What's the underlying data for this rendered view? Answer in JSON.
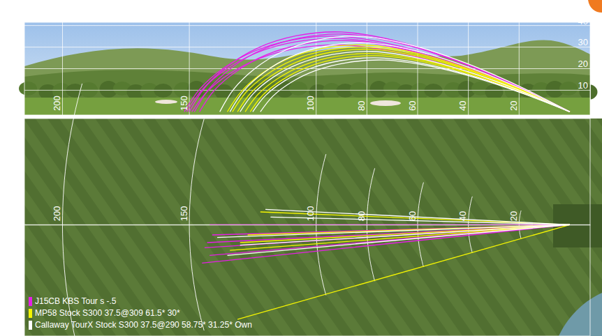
{
  "chart_data": [
    {
      "type": "trajectory",
      "xlim": [
        215,
        -8
      ],
      "ylim": [
        -1.5,
        41.5
      ],
      "xticks": [
        200,
        150,
        100,
        80,
        60,
        40,
        20
      ],
      "yticks": [
        10,
        20,
        30,
        40
      ],
      "grid": true,
      "series": [
        {
          "color": "#e61ee6",
          "shots": [
            {
              "x": [
                0,
                22.5,
                45,
                67.5,
                90,
                108,
                123,
                135,
                144,
                150
              ],
              "y": [
                0,
                13,
                24,
                32.6,
                37,
                35.2,
                29.6,
                21.1,
                11.1,
                0
              ]
            },
            {
              "x": [
                0,
                22.2,
                44.4,
                66.6,
                88.8,
                106.6,
                121.4,
                133.2,
                142.1,
                148
              ],
              "y": [
                0,
                12.6,
                23.4,
                31.7,
                36,
                34.2,
                28.8,
                20.5,
                10.8,
                0
              ]
            },
            {
              "x": [
                0,
                22.8,
                45.6,
                68.4,
                91.2,
                109.4,
                124.6,
                136.8,
                145.9,
                152
              ],
              "y": [
                0,
                12.3,
                22.8,
                30.8,
                35,
                33.3,
                28,
                20,
                10.5,
                0
              ]
            },
            {
              "x": [
                0,
                21.9,
                43.8,
                65.7,
                87.6,
                105.1,
                119.7,
                131.4,
                140.2,
                146
              ],
              "y": [
                0,
                11.6,
                21.5,
                29,
                33,
                31.4,
                26.4,
                18.8,
                9.9,
                0
              ]
            },
            {
              "x": [
                0,
                22.4,
                44.7,
                67,
                89.4,
                107.3,
                122.2,
                134.1,
                143,
                149
              ],
              "y": [
                0,
                10.9,
                20.2,
                27.3,
                31,
                29.5,
                24.8,
                17.7,
                9.3,
                0
              ]
            },
            {
              "x": [
                0,
                22.7,
                45.3,
                68,
                90.6,
                108.7,
                123.8,
                135.9,
                145,
                151
              ],
              "y": [
                0,
                11.9,
                22.1,
                29.9,
                34,
                32.3,
                27.2,
                19.4,
                10.2,
                0
              ]
            }
          ]
        },
        {
          "color": "#f5f500",
          "shots": [
            {
              "x": [
                0,
                20.3,
                40.5,
                60.8,
                81,
                97.2,
                110.7,
                121.5,
                129.6,
                135
              ],
              "y": [
                0,
                10.9,
                20.2,
                27.3,
                31,
                29.5,
                24.8,
                17.7,
                9.3,
                0
              ]
            },
            {
              "x": [
                0,
                19.7,
                39.3,
                59,
                78.6,
                94.3,
                107.4,
                117.9,
                125.8,
                131
              ],
              "y": [
                0,
                10.2,
                18.9,
                25.5,
                29,
                27.6,
                23.2,
                16.5,
                8.7,
                0
              ]
            },
            {
              "x": [
                0,
                19.2,
                38.4,
                57.6,
                76.8,
                92.2,
                105,
                115.2,
                122.9,
                128
              ],
              "y": [
                0,
                9.5,
                17.6,
                23.8,
                27,
                25.7,
                21.6,
                15.4,
                8.1,
                0
              ]
            },
            {
              "x": [
                0,
                20,
                39.9,
                59.9,
                79.8,
                95.8,
                109.1,
                119.7,
                127.7,
                133
              ],
              "y": [
                0,
                10.5,
                19.5,
                26.4,
                30,
                28.5,
                24,
                17.1,
                9,
                0
              ]
            },
            {
              "x": [
                0,
                18.9,
                37.8,
                56.7,
                75.6,
                90.7,
                103.3,
                113.4,
                121,
                126
              ],
              "y": [
                0,
                9.1,
                16.9,
                22.9,
                26,
                24.7,
                20.8,
                14.8,
                7.8,
                0
              ]
            }
          ]
        },
        {
          "color": "#ffffff",
          "shots": [
            {
              "x": [
                0,
                20.7,
                41.4,
                62.1,
                82.8,
                99.4,
                113.2,
                124.2,
                132.5,
                138
              ],
              "y": [
                0,
                12.3,
                22.8,
                30.8,
                35,
                33.3,
                28,
                20,
                10.5,
                0
              ]
            },
            {
              "x": [
                0,
                19.5,
                39,
                58.5,
                78,
                93.6,
                106.6,
                117,
                124.8,
                130
              ],
              "y": [
                0,
                9.8,
                18.2,
                24.6,
                28,
                26.6,
                22.4,
                16,
                8.4,
                0
              ]
            },
            {
              "x": [
                0,
                18.8,
                37.5,
                56.3,
                75,
                90,
                102.5,
                112.5,
                120,
                125
              ],
              "y": [
                0,
                8.8,
                16.3,
                22,
                25,
                23.8,
                20,
                14.3,
                7.5,
                0
              ]
            },
            {
              "x": [
                0,
                20.1,
                40.2,
                60.3,
                80.4,
                96.5,
                109.9,
                120.6,
                128.6,
                134
              ],
              "y": [
                0,
                11.2,
                20.8,
                28.2,
                32,
                30.4,
                25.6,
                18.2,
                9.6,
                0
              ]
            },
            {
              "x": [
                0,
                18.3,
                36.6,
                54.9,
                73.2,
                87.8,
                100,
                109.8,
                117.1,
                122
              ],
              "y": [
                0,
                8.4,
                15.6,
                21.1,
                24,
                22.8,
                19.2,
                13.7,
                7.2,
                0
              ]
            }
          ]
        }
      ]
    },
    {
      "type": "dispersion",
      "xlim": [
        215,
        -8
      ],
      "ylim": [
        -43.5,
        41.5
      ],
      "xticks": [
        200,
        150,
        100,
        80,
        60,
        40,
        20
      ],
      "yticks": [
        0
      ],
      "tick_labels": "x",
      "grid": true,
      "legend": "bottom-left",
      "series": [
        {
          "name": "J15CB KBS Tour s -.5",
          "color": "#e61ee6",
          "shots": [
            {
              "x": [
                0,
                142
              ],
              "y": [
                0,
                0
              ]
            },
            {
              "x": [
                0,
                141
              ],
              "y": [
                0,
                -4
              ]
            },
            {
              "x": [
                0,
                143
              ],
              "y": [
                0,
                -7
              ]
            },
            {
              "x": [
                0,
                144
              ],
              "y": [
                0,
                -9
              ]
            },
            {
              "x": [
                0,
                142
              ],
              "y": [
                0,
                -12
              ]
            },
            {
              "x": [
                0,
                145
              ],
              "y": [
                0,
                -15
              ]
            }
          ]
        },
        {
          "name": "MP58 Stock S300 37.5@309 61.5* 30*",
          "color": "#f5f500",
          "shots": [
            {
              "x": [
                0,
                134
              ],
              "y": [
                0,
                -10
              ]
            },
            {
              "x": [
                0,
                130
              ],
              "y": [
                0,
                -7
              ]
            },
            {
              "x": [
                0,
                122
              ],
              "y": [
                0,
                5
              ]
            },
            {
              "x": [
                0,
                131
              ],
              "y": [
                0,
                -37
              ]
            },
            {
              "x": [
                0,
                127
              ],
              "y": [
                0,
                -4
              ]
            }
          ]
        },
        {
          "name": "Callaway TourX Stock S300 37.5@290 58.75* 31.25* Own",
          "color": "#ffffff",
          "shots": [
            {
              "x": [
                0,
                139
              ],
              "y": [
                0,
                -5
              ]
            },
            {
              "x": [
                0,
                130
              ],
              "y": [
                0,
                -8
              ]
            },
            {
              "x": [
                0,
                120
              ],
              "y": [
                0,
                6
              ]
            },
            {
              "x": [
                0,
                135
              ],
              "y": [
                0,
                -12
              ]
            },
            {
              "x": [
                0,
                118
              ],
              "y": [
                0,
                3
              ]
            }
          ]
        }
      ]
    }
  ]
}
